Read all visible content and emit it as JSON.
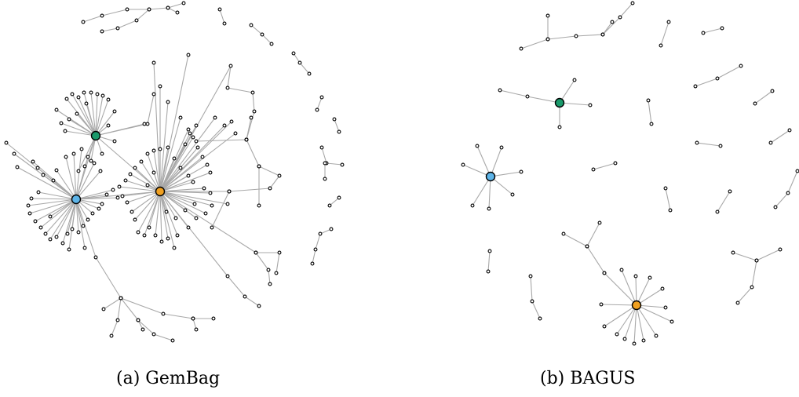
{
  "captions": {
    "a": "(a) GemBag",
    "b": "(b) BAGUS"
  },
  "colors": {
    "hub_green": "#1a9a6b",
    "hub_blue": "#5db4e8",
    "hub_orange": "#f0a020",
    "edge": "#a8a8a8"
  }
}
